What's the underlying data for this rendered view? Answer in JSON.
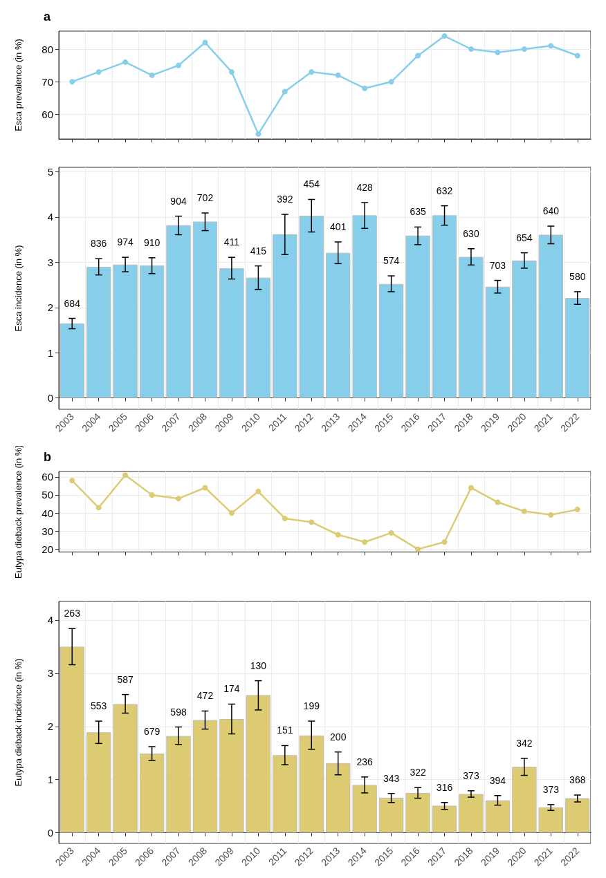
{
  "chart_data": [
    {
      "type": "line",
      "title": "a",
      "ylabel": "Esca prevalence (in %)",
      "categories": [
        "2003",
        "2004",
        "2005",
        "2006",
        "2007",
        "2008",
        "2009",
        "2010",
        "2011",
        "2012",
        "2013",
        "2014",
        "2015",
        "2016",
        "2017",
        "2018",
        "2019",
        "2020",
        "2021",
        "2022"
      ],
      "values": [
        70,
        73,
        76,
        72,
        75,
        82,
        73,
        54,
        67,
        73,
        72,
        68,
        70,
        78,
        84,
        80,
        79,
        80,
        81,
        78
      ],
      "color": "#87ceeb",
      "ylim": [
        52.5,
        85.5
      ],
      "yticks": [
        60,
        70,
        80
      ],
      "grid": true,
      "marker": "circle",
      "line_style": "solid",
      "tick_labels": "y"
    },
    {
      "type": "bar",
      "ylabel": "Esca incidence (in %)",
      "categories": [
        "2003",
        "2004",
        "2005",
        "2006",
        "2007",
        "2008",
        "2009",
        "2010",
        "2011",
        "2012",
        "2013",
        "2014",
        "2015",
        "2016",
        "2017",
        "2018",
        "2019",
        "2020",
        "2021",
        "2022"
      ],
      "values": [
        1.65,
        2.9,
        2.95,
        2.93,
        3.82,
        3.9,
        2.87,
        2.66,
        3.62,
        4.03,
        3.21,
        4.04,
        2.52,
        3.59,
        4.04,
        3.12,
        2.46,
        3.04,
        3.61,
        2.21
      ],
      "color": "#87ceeb",
      "errors": [
        [
          1.53,
          1.76
        ],
        [
          2.72,
          3.08
        ],
        [
          2.79,
          3.11
        ],
        [
          2.75,
          3.1
        ],
        [
          3.61,
          4.02
        ],
        [
          3.7,
          4.09
        ],
        [
          2.63,
          3.11
        ],
        [
          2.4,
          2.92
        ],
        [
          3.17,
          4.06
        ],
        [
          3.67,
          4.39
        ],
        [
          2.97,
          3.45
        ],
        [
          3.75,
          4.32
        ],
        [
          2.35,
          2.7
        ],
        [
          3.39,
          3.78
        ],
        [
          3.82,
          4.25
        ],
        [
          2.94,
          3.3
        ],
        [
          2.32,
          2.6
        ],
        [
          2.87,
          3.21
        ],
        [
          3.41,
          3.8
        ],
        [
          2.07,
          2.35
        ]
      ],
      "annotations": [
        "684",
        "836",
        "974",
        "910",
        "904",
        "702",
        "411",
        "415",
        "392",
        "454",
        "401",
        "428",
        "574",
        "635",
        "632",
        "630",
        "703",
        "654",
        "640",
        "580"
      ],
      "ylim": [
        -0.25,
        5.1
      ],
      "yticks": [
        0,
        1,
        2,
        3,
        4,
        5
      ],
      "grid": true
    },
    {
      "type": "line",
      "title": "b",
      "ylabel": "Eutypa dieback prevalence (in %)",
      "categories": [
        "2003",
        "2004",
        "2005",
        "2006",
        "2007",
        "2008",
        "2009",
        "2010",
        "2011",
        "2012",
        "2013",
        "2014",
        "2015",
        "2016",
        "2017",
        "2018",
        "2019",
        "2020",
        "2021",
        "2022"
      ],
      "values": [
        58,
        43,
        61,
        50,
        48,
        54,
        40,
        52,
        37,
        35,
        28,
        24,
        29,
        20,
        24,
        54,
        46,
        41,
        39,
        42
      ],
      "color": "#dccb73",
      "ylim": [
        18.5,
        63
      ],
      "yticks": [
        20,
        30,
        40,
        50,
        60
      ],
      "grid": true,
      "marker": "circle",
      "line_style": "solid",
      "tick_labels": "y"
    },
    {
      "type": "bar",
      "ylabel": "Eutypa dieback incidence (in %)",
      "categories": [
        "2003",
        "2004",
        "2005",
        "2006",
        "2007",
        "2008",
        "2009",
        "2010",
        "2011",
        "2012",
        "2013",
        "2014",
        "2015",
        "2016",
        "2017",
        "2018",
        "2019",
        "2020",
        "2021",
        "2022"
      ],
      "values": [
        3.5,
        1.89,
        2.42,
        1.49,
        1.82,
        2.12,
        2.14,
        2.59,
        1.46,
        1.83,
        1.31,
        0.9,
        0.66,
        0.75,
        0.51,
        0.73,
        0.61,
        1.24,
        0.48,
        0.65
      ],
      "color": "#dccb73",
      "errors": [
        [
          3.16,
          3.84
        ],
        [
          1.68,
          2.1
        ],
        [
          2.25,
          2.6
        ],
        [
          1.36,
          1.62
        ],
        [
          1.66,
          1.99
        ],
        [
          1.95,
          2.29
        ],
        [
          1.86,
          2.42
        ],
        [
          2.31,
          2.86
        ],
        [
          1.28,
          1.64
        ],
        [
          1.57,
          2.1
        ],
        [
          1.09,
          1.52
        ],
        [
          0.75,
          1.05
        ],
        [
          0.57,
          0.74
        ],
        [
          0.65,
          0.85
        ],
        [
          0.44,
          0.57
        ],
        [
          0.67,
          0.79
        ],
        [
          0.52,
          0.7
        ],
        [
          1.08,
          1.4
        ],
        [
          0.42,
          0.53
        ],
        [
          0.58,
          0.71
        ]
      ],
      "annotations": [
        "263",
        "553",
        "587",
        "679",
        "598",
        "472",
        "174",
        "130",
        "151",
        "199",
        "200",
        "236",
        "343",
        "322",
        "316",
        "373",
        "394",
        "342",
        "373",
        "368"
      ],
      "ylim": [
        -0.2,
        4.35
      ],
      "yticks": [
        0,
        1,
        2,
        3,
        4
      ],
      "grid": true
    }
  ]
}
